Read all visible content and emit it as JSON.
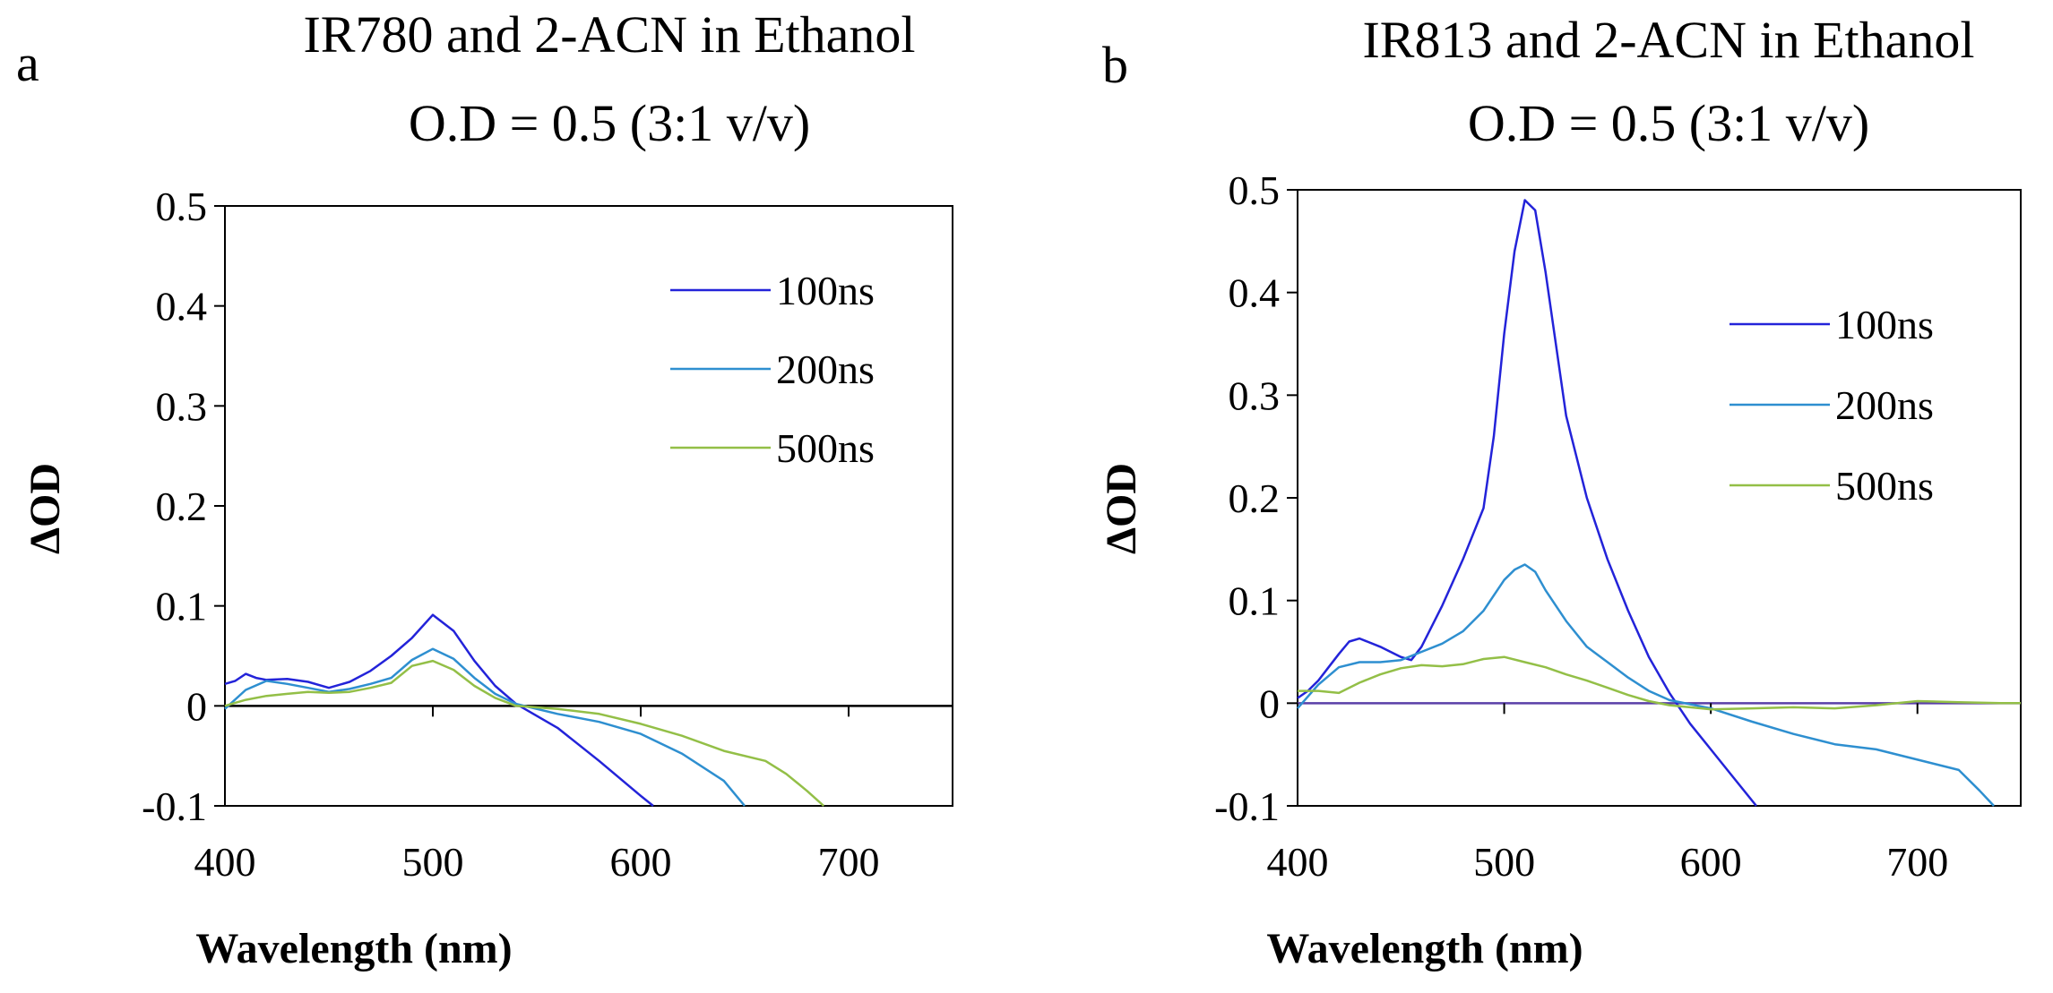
{
  "chart_data": [
    {
      "type": "line",
      "panel_label": "a",
      "title": "IR780 and 2-ACN in Ethanol",
      "subtitle": "O.D = 0.5 (3:1 v/v)",
      "xlabel": "Wavelength (nm)",
      "ylabel": "ΔOD",
      "xlim": [
        400,
        750
      ],
      "ylim": [
        -0.1,
        0.5
      ],
      "xticks": [
        400,
        500,
        600,
        700
      ],
      "yticks": [
        -0.1,
        0,
        0.1,
        0.2,
        0.3,
        0.4,
        0.5
      ],
      "ytick_labels": [
        "-0.1",
        "0",
        "0.1",
        "0.2",
        "0.3",
        "0.4",
        "0.5"
      ],
      "legend_position": "top-right",
      "series": [
        {
          "name": "100ns",
          "color": "#2323d9",
          "x": [
            400,
            405,
            410,
            415,
            420,
            430,
            440,
            450,
            460,
            470,
            480,
            490,
            500,
            510,
            520,
            530,
            540,
            560,
            580,
            600,
            606
          ],
          "y": [
            0.022,
            0.025,
            0.032,
            0.028,
            0.026,
            0.027,
            0.024,
            0.018,
            0.024,
            0.035,
            0.05,
            0.068,
            0.091,
            0.075,
            0.045,
            0.02,
            0.002,
            -0.022,
            -0.055,
            -0.09,
            -0.1
          ]
        },
        {
          "name": "200ns",
          "color": "#2e8fd0",
          "x": [
            400,
            410,
            420,
            430,
            440,
            450,
            460,
            470,
            480,
            490,
            500,
            510,
            520,
            530,
            540,
            560,
            580,
            600,
            620,
            640,
            650
          ],
          "y": [
            -0.003,
            0.016,
            0.025,
            0.022,
            0.018,
            0.014,
            0.017,
            0.022,
            0.028,
            0.046,
            0.057,
            0.047,
            0.028,
            0.012,
            0.002,
            -0.008,
            -0.016,
            -0.028,
            -0.048,
            -0.075,
            -0.1
          ]
        },
        {
          "name": "500ns",
          "color": "#93bf47",
          "x": [
            400,
            410,
            420,
            430,
            440,
            450,
            460,
            470,
            480,
            490,
            500,
            510,
            520,
            530,
            540,
            560,
            580,
            600,
            620,
            640,
            660,
            670,
            680,
            688
          ],
          "y": [
            0.0,
            0.006,
            0.01,
            0.012,
            0.014,
            0.013,
            0.014,
            0.018,
            0.023,
            0.04,
            0.045,
            0.036,
            0.02,
            0.008,
            0.0,
            -0.003,
            -0.008,
            -0.018,
            -0.03,
            -0.045,
            -0.055,
            -0.068,
            -0.085,
            -0.1
          ]
        }
      ]
    },
    {
      "type": "line",
      "panel_label": "b",
      "title": "IR813 and 2-ACN in Ethanol",
      "subtitle": "O.D = 0.5 (3:1 v/v)",
      "xlabel": "Wavelength (nm)",
      "ylabel": "ΔOD",
      "xlim": [
        400,
        750
      ],
      "ylim": [
        -0.1,
        0.5
      ],
      "xticks": [
        400,
        500,
        600,
        700
      ],
      "yticks": [
        -0.1,
        0,
        0.1,
        0.2,
        0.3,
        0.4,
        0.5
      ],
      "ytick_labels": [
        "-0.1",
        "0",
        "0.1",
        "0.2",
        "0.3",
        "0.4",
        "0.5"
      ],
      "legend_position": "top-right",
      "series": [
        {
          "name": "100ns",
          "color": "#2323d9",
          "x": [
            400,
            405,
            410,
            415,
            420,
            425,
            430,
            440,
            450,
            455,
            460,
            470,
            480,
            490,
            495,
            500,
            505,
            510,
            515,
            520,
            525,
            530,
            540,
            550,
            560,
            570,
            580,
            590,
            600,
            610,
            622
          ],
          "y": [
            0.005,
            0.012,
            0.022,
            0.035,
            0.048,
            0.06,
            0.063,
            0.055,
            0.045,
            0.042,
            0.055,
            0.095,
            0.14,
            0.19,
            0.26,
            0.36,
            0.44,
            0.49,
            0.48,
            0.42,
            0.35,
            0.28,
            0.2,
            0.14,
            0.09,
            0.045,
            0.01,
            -0.02,
            -0.045,
            -0.07,
            -0.1
          ]
        },
        {
          "name": "200ns",
          "color": "#2e8fd0",
          "x": [
            400,
            410,
            420,
            430,
            440,
            450,
            460,
            470,
            480,
            490,
            495,
            500,
            505,
            510,
            515,
            520,
            530,
            540,
            550,
            560,
            570,
            580,
            600,
            620,
            640,
            660,
            680,
            700,
            720,
            730,
            737
          ],
          "y": [
            -0.005,
            0.018,
            0.035,
            0.04,
            0.04,
            0.042,
            0.05,
            0.058,
            0.07,
            0.09,
            0.105,
            0.12,
            0.13,
            0.135,
            0.128,
            0.11,
            0.08,
            0.055,
            0.04,
            0.025,
            0.012,
            0.003,
            -0.005,
            -0.018,
            -0.03,
            -0.04,
            -0.045,
            -0.055,
            -0.065,
            -0.085,
            -0.1
          ]
        },
        {
          "name": "500ns",
          "color": "#93bf47",
          "x": [
            400,
            410,
            420,
            430,
            440,
            450,
            460,
            470,
            480,
            490,
            500,
            510,
            520,
            530,
            540,
            550,
            560,
            570,
            580,
            590,
            600,
            620,
            640,
            660,
            680,
            700,
            720,
            740,
            750
          ],
          "y": [
            0.012,
            0.012,
            0.01,
            0.02,
            0.028,
            0.034,
            0.037,
            0.036,
            0.038,
            0.043,
            0.045,
            0.04,
            0.035,
            0.028,
            0.022,
            0.015,
            0.008,
            0.002,
            -0.002,
            -0.004,
            -0.006,
            -0.005,
            -0.004,
            -0.005,
            -0.002,
            0.002,
            0.001,
            0.0,
            0.0
          ]
        }
      ]
    }
  ]
}
